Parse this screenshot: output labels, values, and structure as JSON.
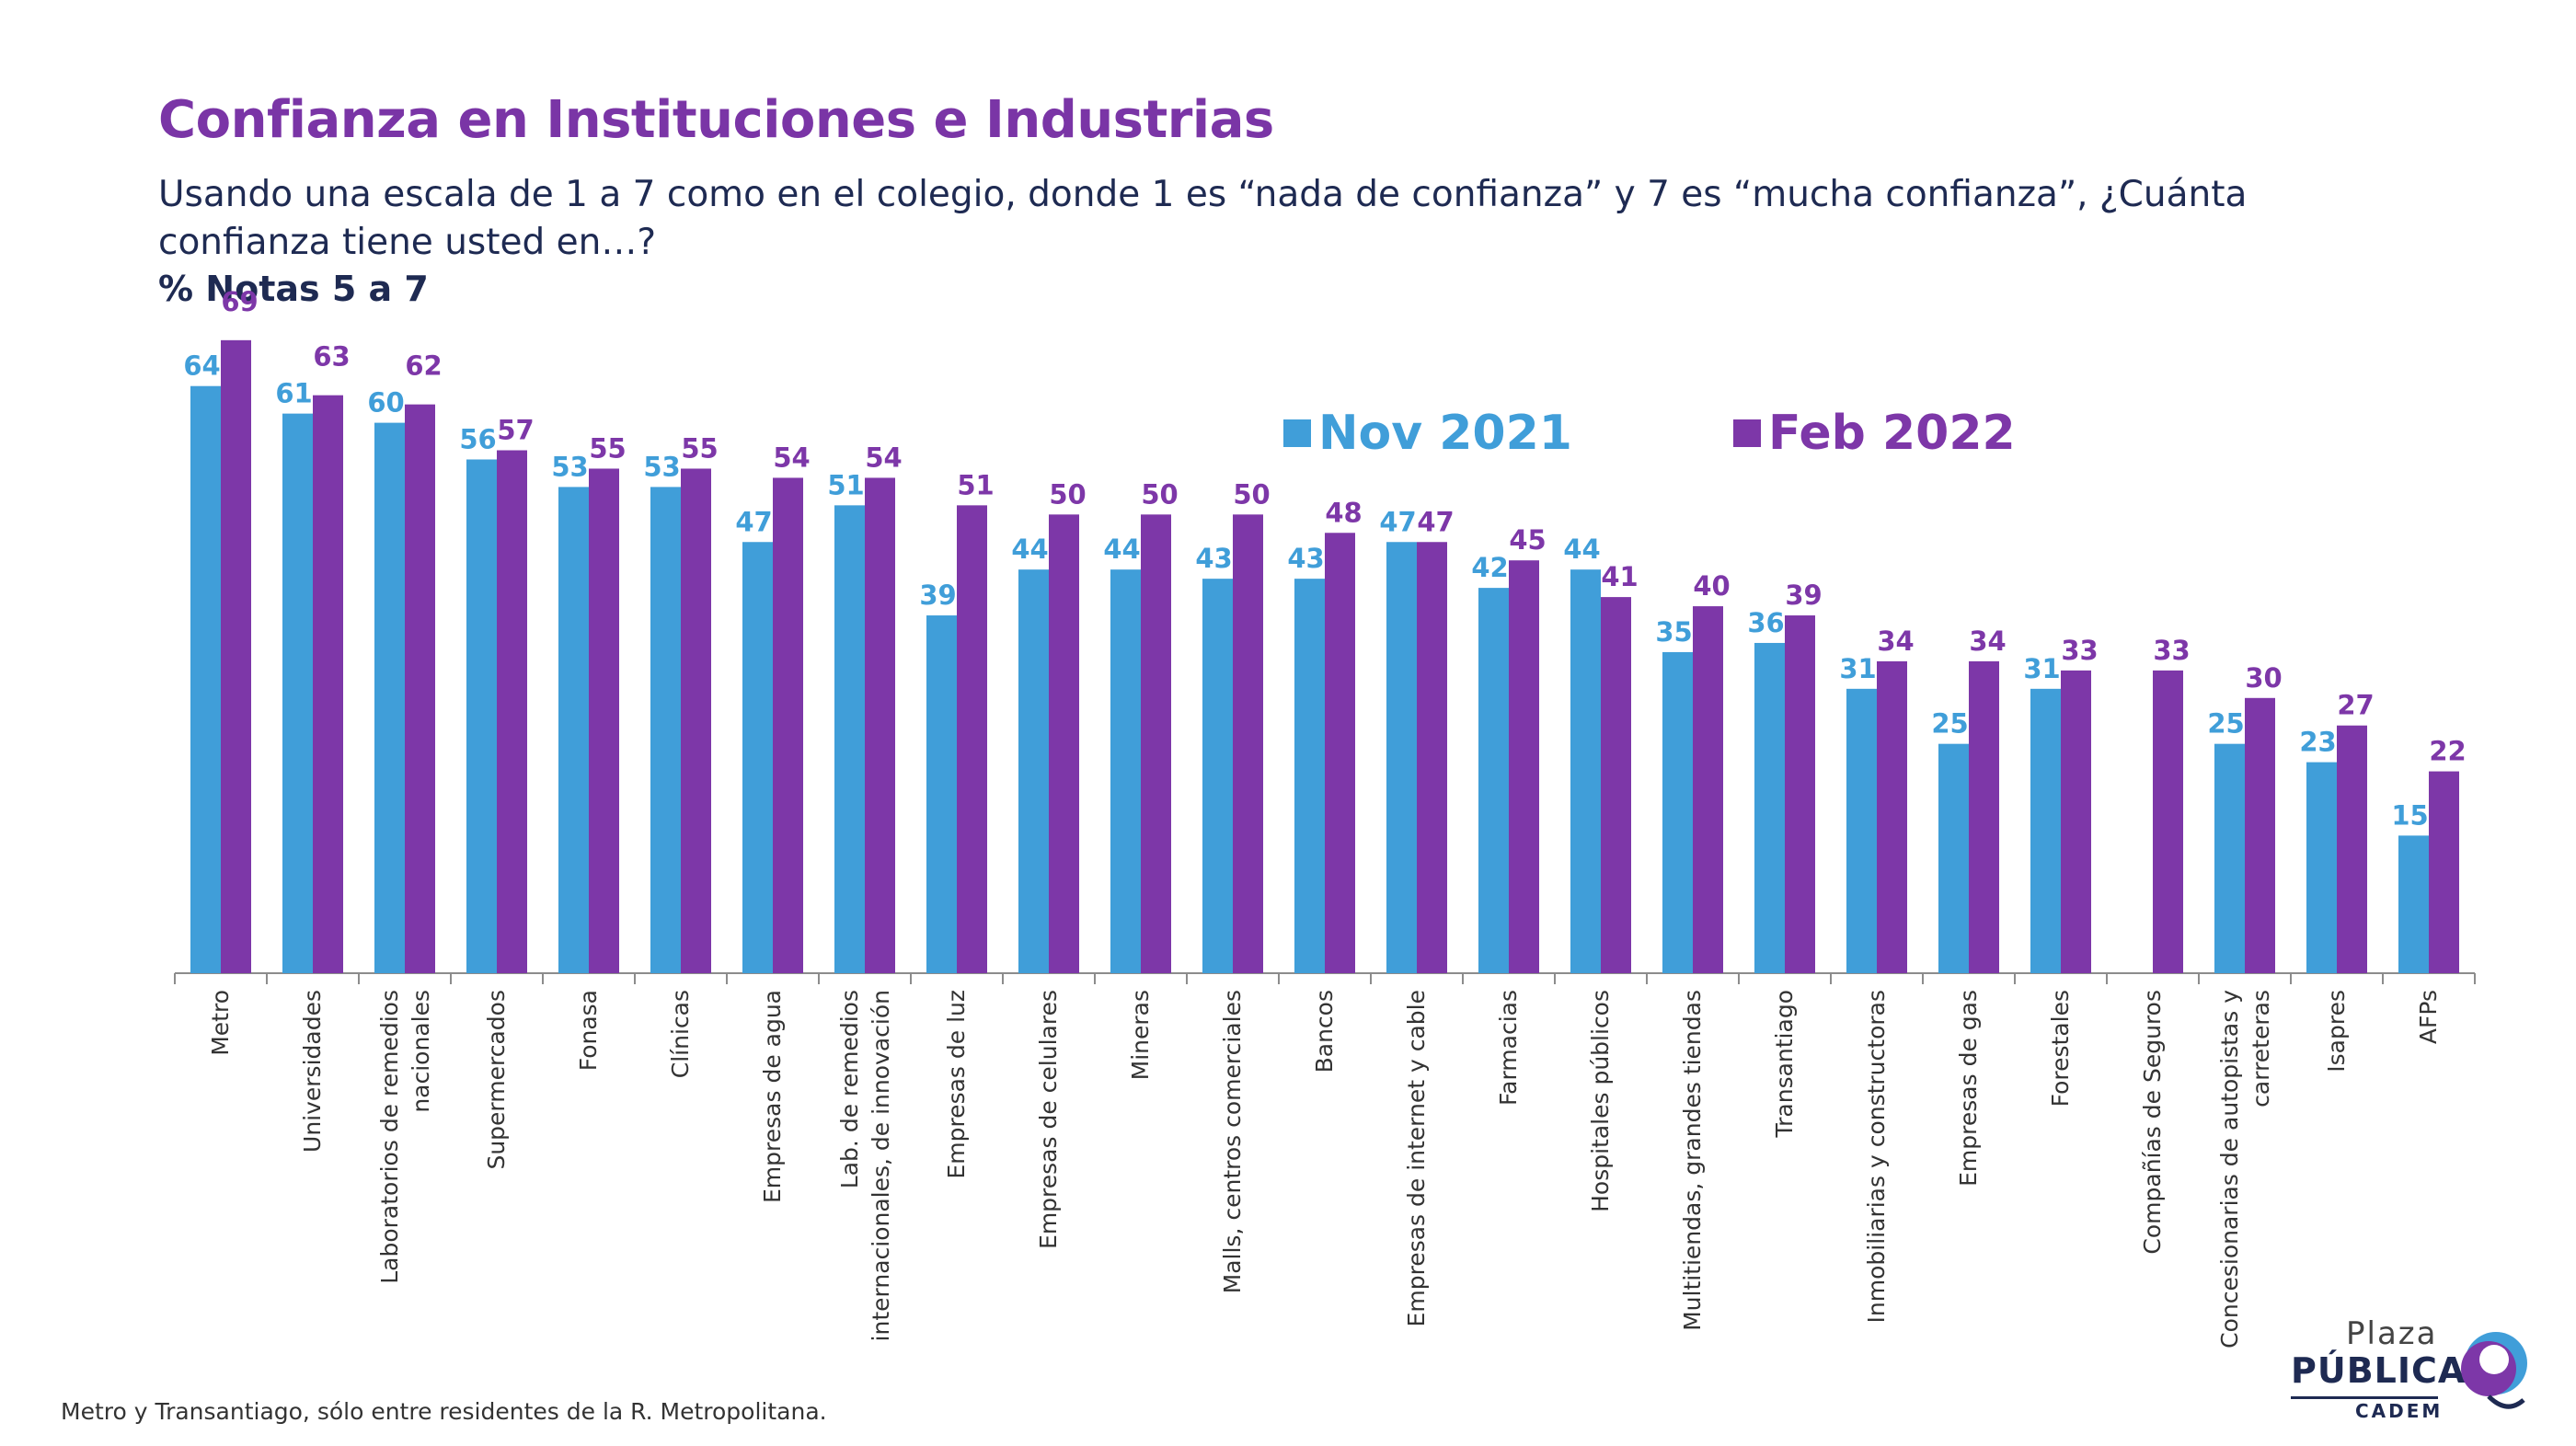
{
  "header": {
    "title": "Confianza en Instituciones e Industrias",
    "question": "Usando una escala de 1 a 7 como en el colegio, donde 1 es “nada de confianza” y 7 es “mucha confianza”, ¿Cuánta confianza tiene usted en…?",
    "unit": "% Notas 5 a 7"
  },
  "footnote": "Metro y Transantiago, sólo entre residentes de la R. Metropolitana.",
  "logo": {
    "line1": "Plaza",
    "line2": "PÚBLICA",
    "line3": "CADEM"
  },
  "colors": {
    "title": "#7a35a6",
    "text": "#1e2a52",
    "nov2021": "#409ed9",
    "feb2022": "#7d37a8"
  },
  "chart_data": {
    "type": "bar",
    "title": "",
    "xlabel": "",
    "ylabel": "",
    "ylim": [
      0,
      75
    ],
    "grid": false,
    "legend_position": "top-right",
    "categories": [
      "Metro",
      "Universidades",
      "Laboratorios de remedios nacionales",
      "Supermercados",
      "Fonasa",
      "Clínicas",
      "Empresas de agua",
      "Lab. de remedios internacionales, de innovación",
      "Empresas de luz",
      "Empresas de celulares",
      "Mineras",
      "Malls, centros comerciales",
      "Bancos",
      "Empresas de internet y cable",
      "Farmacias",
      "Hospitales públicos",
      "Multitiendas, grandes tiendas",
      "Transantiago",
      "Inmobiliarias y constructoras",
      "Empresas de gas",
      "Forestales",
      "Compañías de Seguros",
      "Concesionarias de autopistas y carreteras",
      "Isapres",
      "AFPs"
    ],
    "series": [
      {
        "name": "Nov 2021",
        "color": "#409ed9",
        "values": [
          64,
          61,
          60,
          56,
          53,
          53,
          47,
          51,
          39,
          44,
          44,
          43,
          43,
          47,
          42,
          44,
          35,
          36,
          31,
          25,
          31,
          null,
          25,
          23,
          15
        ]
      },
      {
        "name": "Feb 2022",
        "color": "#7d37a8",
        "values": [
          69,
          63,
          62,
          57,
          55,
          55,
          54,
          54,
          51,
          50,
          50,
          50,
          48,
          47,
          45,
          41,
          40,
          39,
          34,
          34,
          33,
          33,
          30,
          27,
          22
        ]
      }
    ]
  }
}
